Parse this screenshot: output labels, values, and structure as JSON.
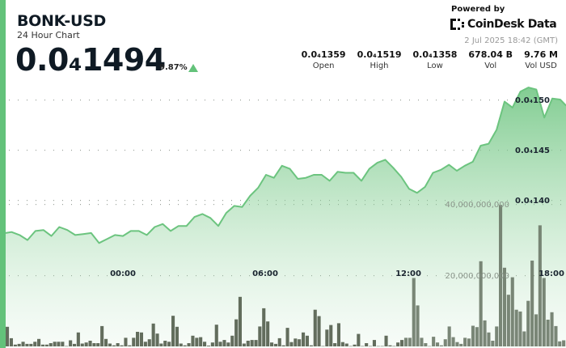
{
  "header": {
    "symbol": "BONK-USD",
    "subtitle": "24 Hour Chart",
    "price": "0.0₄1494",
    "change_pct": "9.87%",
    "change_direction_icon": "triangle-up-icon",
    "powered_by": "Powered by",
    "brand": "CoinDesk Data",
    "timestamp": "2 Jul 2025 18:42 (GMT)"
  },
  "stats": [
    {
      "value": "0.0₄1359",
      "label": "Open"
    },
    {
      "value": "0.0₄1519",
      "label": "High"
    },
    {
      "value": "0.0₄1358",
      "label": "Low"
    },
    {
      "value": "678.04 B",
      "label": "Vol"
    },
    {
      "value": "9.76 M",
      "label": "Vol USD"
    }
  ],
  "colors": {
    "accent": "#63c27a",
    "line": "#6cc47f",
    "volume": "#56614f"
  },
  "chart_data": {
    "type": "area",
    "price_axis": {
      "ticks": [
        1.4e-05,
        1.45e-05,
        1.5e-05
      ],
      "tick_labels": [
        "0.0₄140",
        "0.0₄145",
        "0.0₄150"
      ]
    },
    "volume_axis": {
      "ticks": [
        20000000000,
        40000000000
      ],
      "tick_labels": [
        "20,000,000,000",
        "40,000,000,000"
      ]
    },
    "time_axis": {
      "tick_labels": [
        "00:00",
        "06:00",
        "12:00",
        "18:00"
      ]
    },
    "grid": true,
    "price_series": {
      "times": [
        "19:00",
        "19:20",
        "19:40",
        "20:00",
        "20:20",
        "20:40",
        "21:00",
        "21:20",
        "21:40",
        "22:00",
        "22:20",
        "22:40",
        "23:00",
        "23:20",
        "23:40",
        "00:00",
        "00:20",
        "00:40",
        "01:00",
        "01:20",
        "01:40",
        "02:00",
        "02:20",
        "02:40",
        "03:00",
        "03:20",
        "03:40",
        "04:00",
        "04:20",
        "04:40",
        "05:00",
        "05:20",
        "05:40",
        "06:00",
        "06:20",
        "06:40",
        "07:00",
        "07:20",
        "07:40",
        "08:00",
        "08:20",
        "08:40",
        "09:00",
        "09:20",
        "09:40",
        "10:00",
        "10:20",
        "10:40",
        "11:00",
        "11:20",
        "11:40",
        "12:00",
        "12:20",
        "12:40",
        "13:00",
        "13:20",
        "13:40",
        "14:00",
        "14:20",
        "14:40",
        "15:00",
        "15:20",
        "15:40",
        "16:00",
        "16:20",
        "16:40",
        "17:00",
        "17:20",
        "17:40",
        "18:00",
        "18:20",
        "18:40"
      ],
      "values": [
        1.367e-05,
        1.368e-05,
        1.365e-05,
        1.36e-05,
        1.369e-05,
        1.37e-05,
        1.364e-05,
        1.373e-05,
        1.37e-05,
        1.365e-05,
        1.366e-05,
        1.367e-05,
        1.357e-05,
        1.361e-05,
        1.365e-05,
        1.364e-05,
        1.369e-05,
        1.369e-05,
        1.365e-05,
        1.373e-05,
        1.376e-05,
        1.369e-05,
        1.374e-05,
        1.374e-05,
        1.383e-05,
        1.386e-05,
        1.382e-05,
        1.374e-05,
        1.387e-05,
        1.394e-05,
        1.393e-05,
        1.404e-05,
        1.412e-05,
        1.425e-05,
        1.422e-05,
        1.434e-05,
        1.431e-05,
        1.421e-05,
        1.422e-05,
        1.425e-05,
        1.425e-05,
        1.419e-05,
        1.428e-05,
        1.427e-05,
        1.427e-05,
        1.419e-05,
        1.431e-05,
        1.437e-05,
        1.44e-05,
        1.432e-05,
        1.423e-05,
        1.411e-05,
        1.407e-05,
        1.413e-05,
        1.427e-05,
        1.43e-05,
        1.435e-05,
        1.429e-05,
        1.434e-05,
        1.438e-05,
        1.454e-05,
        1.456e-05,
        1.47e-05,
        1.498e-05,
        1.492e-05,
        1.508e-05,
        1.512e-05,
        1.51e-05,
        1.482e-05,
        1.501e-05,
        1.5e-05,
        1.494e-05
      ]
    },
    "volume_series": {
      "values": [
        5500000000.0,
        2300000000.0,
        500000000.0,
        700000000.0,
        1300000000.0,
        700000000.0,
        700000000.0,
        1300000000.0,
        2100000000.0,
        500000000.0,
        500000000.0,
        900000000.0,
        1300000000.0,
        1300000000.0,
        1300000000.0,
        100000000.0,
        1700000000.0,
        700000000.0,
        3900000000.0,
        800000000.0,
        1100000000.0,
        1600000000.0,
        900000000.0,
        900000000.0,
        5700000000.0,
        2100000000.0,
        800000000.0,
        300000000.0,
        900000000.0,
        300000000.0,
        2400000000.0,
        300000000.0,
        2400000000.0,
        4100000000.0,
        3900000000.0,
        1300000000.0,
        2000000000.0,
        6400000000.0,
        3600000000.0,
        800000000.0,
        1600000000.0,
        1300000000.0,
        8600000000.0,
        5500000000.0,
        800000000.0,
        300000000.0,
        900000000.0,
        3000000000.0,
        2400000000.0,
        2600000000.0,
        1300000000.0,
        200000000.0,
        1100000000.0,
        6100000000.0,
        1300000000.0,
        1800000000.0,
        1100000000.0,
        3000000000.0,
        7600000000.0,
        13900000000.0,
        800000000.0,
        1600000000.0,
        1800000000.0,
        1800000000.0,
        5600000000.0,
        10700000000.0,
        7000000000.0,
        1100000000.0,
        700000000.0,
        2300000000.0,
        300000000.0,
        5200000000.0,
        1200000000.0,
        2200000000.0,
        2000000000.0,
        3900000000.0,
        3000000000.0,
        300000000.0,
        10300000000.0,
        8500000000.0,
        100000000.0,
        4700000000.0,
        6000000000.0,
        900000000.0,
        6500000000.0,
        1200000000.0,
        800000000.0,
        100000000.0,
        500000000.0,
        3500000000.0,
        100000000.0,
        900000000.0,
        100000000.0,
        1800000000.0,
        100000000.0,
        100000000.0,
        3000000000.0,
        300000000.0,
        100000000.0,
        1100000000.0,
        1800000000.0,
        2400000000.0,
        2400000000.0,
        19200000000.0,
        11500000000.0,
        2400000000.0,
        900000000.0,
        100000000.0,
        2700000000.0,
        1100000000.0,
        300000000.0,
        2000000000.0,
        5600000000.0,
        2600000000.0,
        1200000000.0,
        700000000.0,
        2400000000.0,
        2200000000.0,
        5800000000.0,
        5400000000.0,
        23900000000.0,
        7300000000.0,
        3900000000.0,
        1600000000.0,
        5600000000.0,
        39700000000.0,
        22100000000.0,
        14500000000.0,
        19400000000.0,
        10300000000.0,
        9800000000.0,
        4200000000.0,
        12800000000.0,
        24100000000.0,
        9000000000.0,
        34000000000.0,
        19200000000.0,
        7500000000.0,
        9600000000.0,
        5700000000.0,
        1400000000.0,
        1700000000.0
      ]
    }
  }
}
